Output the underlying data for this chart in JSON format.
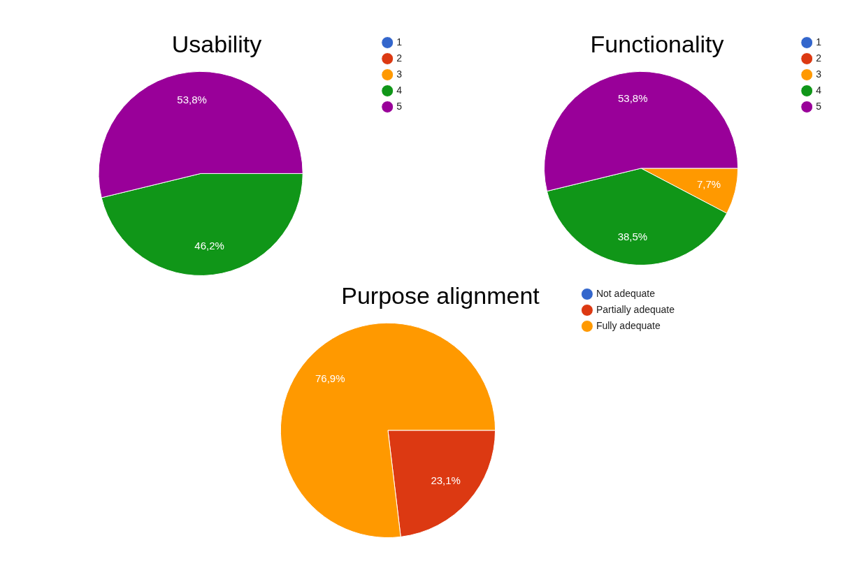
{
  "chart_data": [
    {
      "type": "pie",
      "title": "Usability",
      "categories": [
        "1",
        "2",
        "3",
        "4",
        "5"
      ],
      "values": [
        0,
        0,
        0,
        46.2,
        53.8
      ],
      "colors": [
        "#3366cc",
        "#dc3912",
        "#ff9900",
        "#109618",
        "#990099"
      ],
      "value_labels": [
        null,
        null,
        null,
        "46,2%",
        "53,8%"
      ],
      "legend": "right"
    },
    {
      "type": "pie",
      "title": "Functionality",
      "categories": [
        "1",
        "2",
        "3",
        "4",
        "5"
      ],
      "values": [
        0,
        0,
        7.7,
        38.5,
        53.8
      ],
      "colors": [
        "#3366cc",
        "#dc3912",
        "#ff9900",
        "#109618",
        "#990099"
      ],
      "value_labels": [
        null,
        null,
        "7,7%",
        "38,5%",
        "53,8%"
      ],
      "legend": "right"
    },
    {
      "type": "pie",
      "title": "Purpose alignment",
      "categories": [
        "Not adequate",
        "Partially adequate",
        "Fully adequate"
      ],
      "values": [
        0,
        23.1,
        76.9
      ],
      "colors": [
        "#3366cc",
        "#dc3912",
        "#ff9900"
      ],
      "value_labels": [
        null,
        "23,1%",
        "76,9%"
      ],
      "legend": "right"
    }
  ]
}
